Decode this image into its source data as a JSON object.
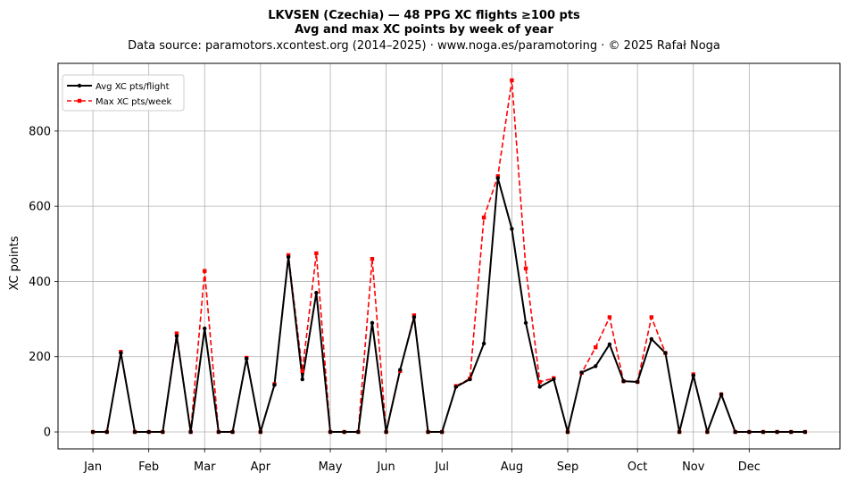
{
  "header": {
    "title": "LKVSEN (Czechia)  —  48 PPG XC flights ≥100 pts",
    "subtitle": "Avg and max XC points by week of year",
    "source": "Data source: paramotors.xcontest.org (2014–2025)  ·  www.noga.es/paramotoring  ·  © 2025 Rafał Noga"
  },
  "chart_data": {
    "type": "line",
    "title": "LKVSEN (Czechia)  —  48 PPG XC flights ≥100 pts",
    "subtitle": "Avg and max XC points by week of year",
    "xlabel": "",
    "ylabel": "XC points",
    "x_unit": "week of year",
    "xlim": [
      -1.5,
      54.5
    ],
    "ylim": [
      -45,
      980
    ],
    "yticks": [
      0,
      200,
      400,
      600,
      800
    ],
    "xticks": [
      {
        "label": "Jan",
        "week": 1
      },
      {
        "label": "Feb",
        "week": 5
      },
      {
        "label": "Mar",
        "week": 9
      },
      {
        "label": "Apr",
        "week": 13
      },
      {
        "label": "May",
        "week": 18
      },
      {
        "label": "Jun",
        "week": 22
      },
      {
        "label": "Jul",
        "week": 26
      },
      {
        "label": "Aug",
        "week": 31
      },
      {
        "label": "Sep",
        "week": 35
      },
      {
        "label": "Oct",
        "week": 40
      },
      {
        "label": "Nov",
        "week": 44
      },
      {
        "label": "Dec",
        "week": 48
      }
    ],
    "grid": true,
    "legend_position": "top-left",
    "x": [
      1,
      2,
      3,
      4,
      5,
      6,
      7,
      8,
      9,
      10,
      11,
      12,
      13,
      14,
      15,
      16,
      17,
      18,
      19,
      20,
      21,
      22,
      23,
      24,
      25,
      26,
      27,
      28,
      29,
      30,
      31,
      32,
      33,
      34,
      35,
      36,
      37,
      38,
      39,
      40,
      41,
      42,
      43,
      44,
      45,
      46,
      47,
      48,
      49,
      50,
      51,
      52
    ],
    "series": [
      {
        "name": "Avg XC pts/flight",
        "color": "#000000",
        "style": "solid",
        "marker": "circle",
        "values": [
          0,
          0,
          210,
          0,
          0,
          0,
          255,
          0,
          275,
          0,
          0,
          195,
          0,
          125,
          465,
          140,
          370,
          0,
          0,
          0,
          290,
          0,
          165,
          305,
          0,
          0,
          120,
          140,
          235,
          675,
          540,
          290,
          120,
          140,
          0,
          158,
          175,
          233,
          135,
          133,
          247,
          210,
          0,
          150,
          0,
          100,
          0,
          0,
          0,
          0,
          0,
          0
        ]
      },
      {
        "name": "Max XC pts/week",
        "color": "#ff0000",
        "style": "dashed",
        "marker": "square",
        "values": [
          0,
          0,
          213,
          0,
          0,
          0,
          262,
          0,
          428,
          0,
          0,
          197,
          0,
          127,
          470,
          162,
          475,
          0,
          0,
          0,
          460,
          0,
          162,
          310,
          0,
          0,
          122,
          142,
          570,
          680,
          935,
          435,
          133,
          143,
          0,
          157,
          225,
          305,
          135,
          133,
          305,
          210,
          0,
          153,
          0,
          100,
          0,
          0,
          0,
          0,
          0,
          0
        ]
      }
    ]
  }
}
